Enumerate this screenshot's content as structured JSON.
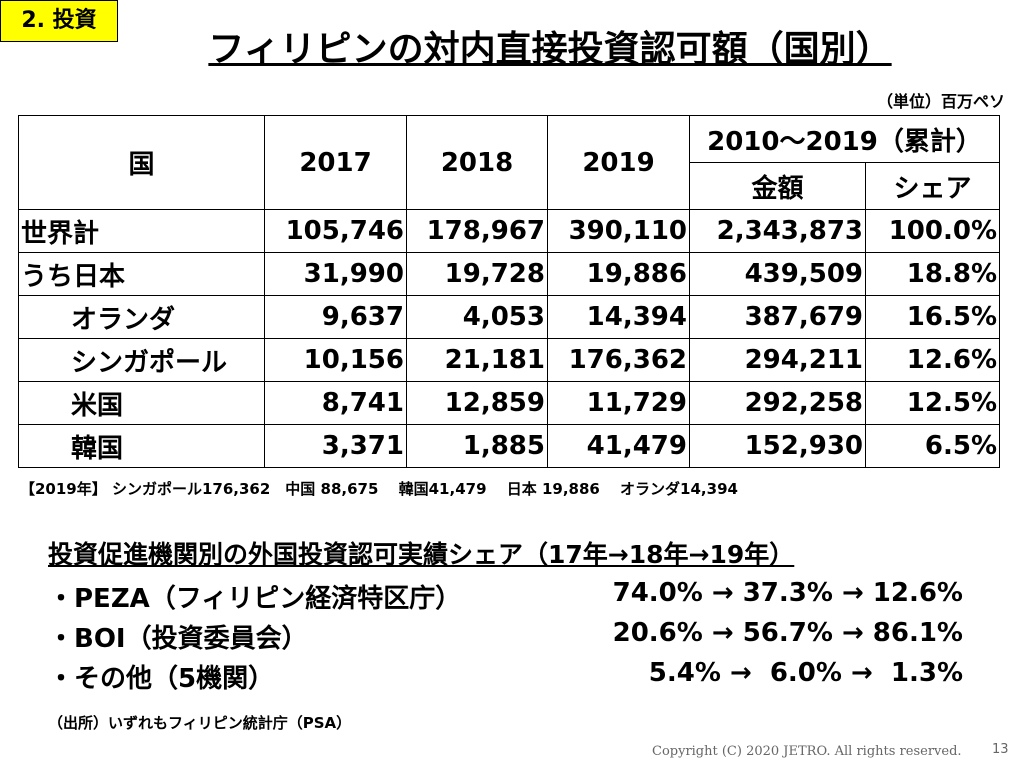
{
  "section_label": "2. 投資",
  "title": "フィリピンの対内直接投資認可額（国別）",
  "unit": "（単位）百万ペソ",
  "table": {
    "header": {
      "country": "国",
      "years": [
        "2017",
        "2018",
        "2019"
      ],
      "cumulative": "2010～2019（累計）",
      "amount": "金額",
      "share": "シェア"
    },
    "rows": [
      [
        "世界計",
        "105,746",
        "178,967",
        "390,110",
        "2,343,873",
        "100.0%"
      ],
      [
        "うち日本",
        "31,990",
        "19,728",
        "19,886",
        "439,509",
        "18.8%"
      ],
      [
        "オランダ",
        "9,637",
        "4,053",
        "14,394",
        "387,679",
        "16.5%"
      ],
      [
        "シンガポール",
        "10,156",
        "21,181",
        "176,362",
        "294,211",
        "12.6%"
      ],
      [
        "米国",
        "8,741",
        "12,859",
        "11,729",
        "292,258",
        "12.5%"
      ],
      [
        "韓国",
        "3,371",
        "1,885",
        "41,479",
        "152,930",
        "6.5%"
      ]
    ]
  },
  "note": "【2019年】 シンガポール176,362　中国 88,675　 韓国41,479　 日本 19,886　 オランダ14,394",
  "shares": {
    "heading": "投資促進機関別の外国投資認可実績シェア（17年→18年→19年）",
    "items": [
      {
        "label": "・PEZA（フィリピン経済特区庁）",
        "values": "74.0% → 37.3% → 12.6%"
      },
      {
        "label": "・BOI（投資委員会）",
        "values": "20.6% → 56.7% → 86.1%"
      },
      {
        "label": "・その他（5機関）",
        "values": "5.4% →  6.0% →  1.3%"
      }
    ]
  },
  "source": "（出所）いずれもフィリピン統計庁（PSA）",
  "footer": {
    "copyright": "Copyright (C) 2020 JETRO. All rights reserved.",
    "page": "13"
  }
}
